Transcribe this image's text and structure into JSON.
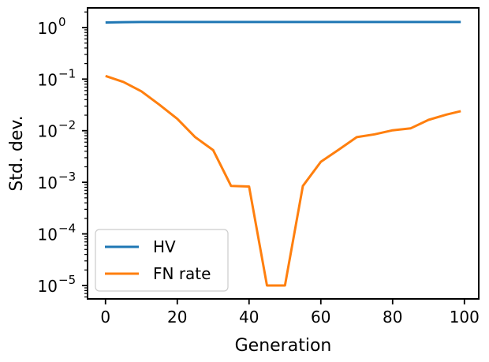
{
  "chart_data": {
    "type": "line",
    "xlabel": "Generation",
    "ylabel": "Std. dev.",
    "xlim": [
      -5,
      104
    ],
    "xticks": [
      0,
      20,
      40,
      60,
      80,
      100
    ],
    "yscale": "log",
    "ylim": [
      5.5e-06,
      2.4
    ],
    "yticks": [
      {
        "value": 1,
        "base": "10",
        "exp": "0"
      },
      {
        "value": 0.1,
        "base": "10",
        "exp": "−1"
      },
      {
        "value": 0.01,
        "base": "10",
        "exp": "−2"
      },
      {
        "value": 0.001,
        "base": "10",
        "exp": "−3"
      },
      {
        "value": 0.0001,
        "base": "10",
        "exp": "−4"
      },
      {
        "value": 1e-05,
        "base": "10",
        "exp": "−5"
      }
    ],
    "grid": false,
    "legend": "bottom-left",
    "series": [
      {
        "name": "HV",
        "color": "#1f77b4",
        "x": [
          0,
          5,
          10,
          20,
          30,
          40,
          50,
          60,
          70,
          80,
          90,
          99
        ],
        "y": [
          1.25,
          1.27,
          1.28,
          1.28,
          1.28,
          1.28,
          1.28,
          1.28,
          1.28,
          1.28,
          1.28,
          1.28
        ]
      },
      {
        "name": "FN rate",
        "color": "#ff7f0e",
        "x": [
          0,
          5,
          10,
          15,
          20,
          25,
          30,
          35,
          40,
          45,
          50,
          55,
          60,
          65,
          70,
          75,
          80,
          85,
          90,
          95,
          99
        ],
        "y": [
          0.115,
          0.088,
          0.058,
          0.032,
          0.017,
          0.0075,
          0.0042,
          0.00085,
          0.00083,
          1e-05,
          1e-05,
          0.00085,
          0.0025,
          0.0043,
          0.0075,
          0.0085,
          0.0102,
          0.0111,
          0.0162,
          0.0205,
          0.024
        ]
      }
    ]
  }
}
